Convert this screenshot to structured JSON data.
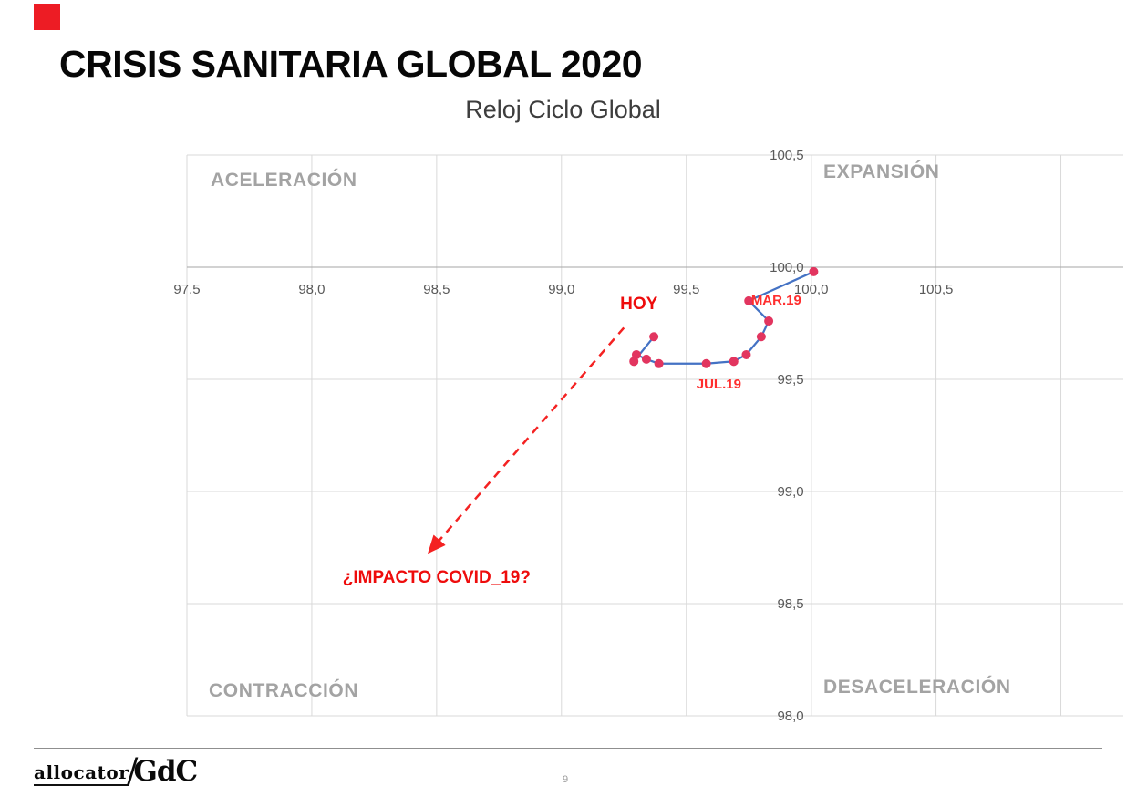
{
  "page": {
    "title": "CRISIS SANITARIA GLOBAL 2020",
    "page_number": "9",
    "accent_color": "#ed1c24"
  },
  "footer": {
    "logo_allocator": "allocator",
    "logo_separator": "/",
    "logo_gdc": "GdC"
  },
  "chart_data": {
    "type": "scatter",
    "title": "Reloj Ciclo Global",
    "xlim": [
      97.5,
      101.25
    ],
    "ylim": [
      98.0,
      100.5
    ],
    "axis_cross": {
      "x": 100.0,
      "y": 100.0
    },
    "grid_on": true,
    "grid_color": "#d9d9d9",
    "axis_color": "#a6a6a6",
    "tick_color": "#595959",
    "x_ticks": [
      {
        "value": 97.5,
        "label": "97,5"
      },
      {
        "value": 98.0,
        "label": "98,0"
      },
      {
        "value": 98.5,
        "label": "98,5"
      },
      {
        "value": 99.0,
        "label": "99,0"
      },
      {
        "value": 99.5,
        "label": "99,5"
      },
      {
        "value": 100.0,
        "label": "100,0"
      },
      {
        "value": 100.5,
        "label": "100,5"
      }
    ],
    "x_grid_extra": [
      101.0
    ],
    "y_ticks": [
      {
        "value": 100.5,
        "label": "100,5"
      },
      {
        "value": 100.0,
        "label": "100,0"
      },
      {
        "value": 99.5,
        "label": "99,5"
      },
      {
        "value": 99.0,
        "label": "99,0"
      },
      {
        "value": 98.5,
        "label": "98,5"
      },
      {
        "value": 98.0,
        "label": "98,0"
      }
    ],
    "quadrants": [
      {
        "label": "ACELERACIÓN",
        "position": "top-left"
      },
      {
        "label": "EXPANSIÓN",
        "position": "top-right"
      },
      {
        "label": "CONTRACCIÓN",
        "position": "bottom-left"
      },
      {
        "label": "DESACELERACIÓN",
        "position": "bottom-right"
      }
    ],
    "series": [
      {
        "name": "ciclo-global",
        "line_color": "#4472c4",
        "point_color": "#e2355f",
        "points": [
          [
            100.01,
            99.98
          ],
          [
            99.75,
            99.85
          ],
          [
            99.83,
            99.76
          ],
          [
            99.8,
            99.69
          ],
          [
            99.74,
            99.61
          ],
          [
            99.69,
            99.58
          ],
          [
            99.58,
            99.57
          ],
          [
            99.39,
            99.57
          ],
          [
            99.34,
            99.59
          ],
          [
            99.3,
            99.61
          ],
          [
            99.29,
            99.58
          ],
          [
            99.37,
            99.69
          ]
        ]
      }
    ],
    "annotations": [
      {
        "id": "mar19",
        "text": "MAR.19",
        "x": 99.86,
        "y": 99.855,
        "color": "#ff2e2e",
        "size": 15,
        "weight": "bold"
      },
      {
        "id": "jul19",
        "text": "JUL.19",
        "x": 99.63,
        "y": 99.48,
        "color": "#ff2e2e",
        "size": 15,
        "weight": "bold"
      },
      {
        "id": "hoy",
        "text": "HOY",
        "x": 99.31,
        "y": 99.84,
        "color": "#ee0c0c",
        "size": 19,
        "weight": "bold"
      },
      {
        "id": "covid",
        "text": "¿IMPACTO COVID_19?",
        "x": 98.5,
        "y": 98.62,
        "color": "#ee0c0c",
        "size": 19,
        "weight": "bold"
      }
    ],
    "arrow": {
      "x1": 99.25,
      "y1": 99.73,
      "x2": 98.47,
      "y2": 98.73,
      "color": "#f42222",
      "dash": "9 7"
    }
  }
}
